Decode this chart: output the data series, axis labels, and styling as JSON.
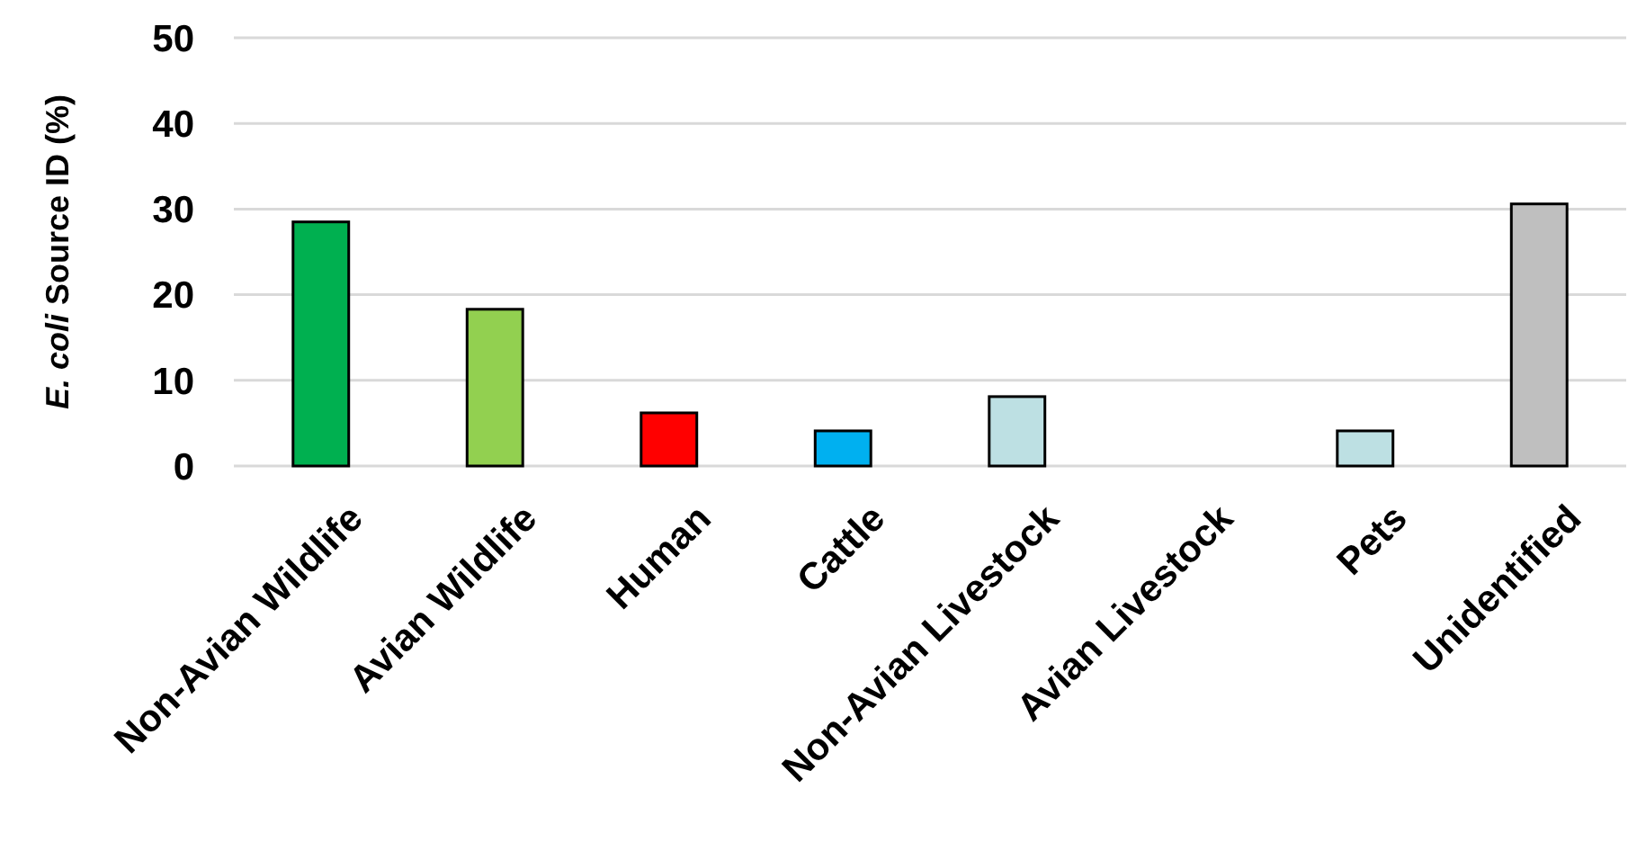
{
  "chart_data": {
    "type": "bar",
    "ylabel": "E. coli Source ID (%)",
    "categories": [
      "Non-Avian Wildlife",
      "Avian Wildlife",
      "Human",
      "Cattle",
      "Non-Avian Livestock",
      "Avian Livestock",
      "Pets",
      "Unidentified"
    ],
    "values": [
      28.5,
      18.3,
      6.2,
      4.1,
      8.1,
      0,
      4.1,
      30.6
    ],
    "colors": [
      "#00b050",
      "#92d050",
      "#ff0000",
      "#00b0f0",
      "#bde0e3",
      "#bde0e3",
      "#bde0e3",
      "#bfbfbf"
    ],
    "ylim": [
      0,
      50
    ],
    "yticks": [
      0,
      10,
      20,
      30,
      40,
      50
    ],
    "grid": "y"
  }
}
